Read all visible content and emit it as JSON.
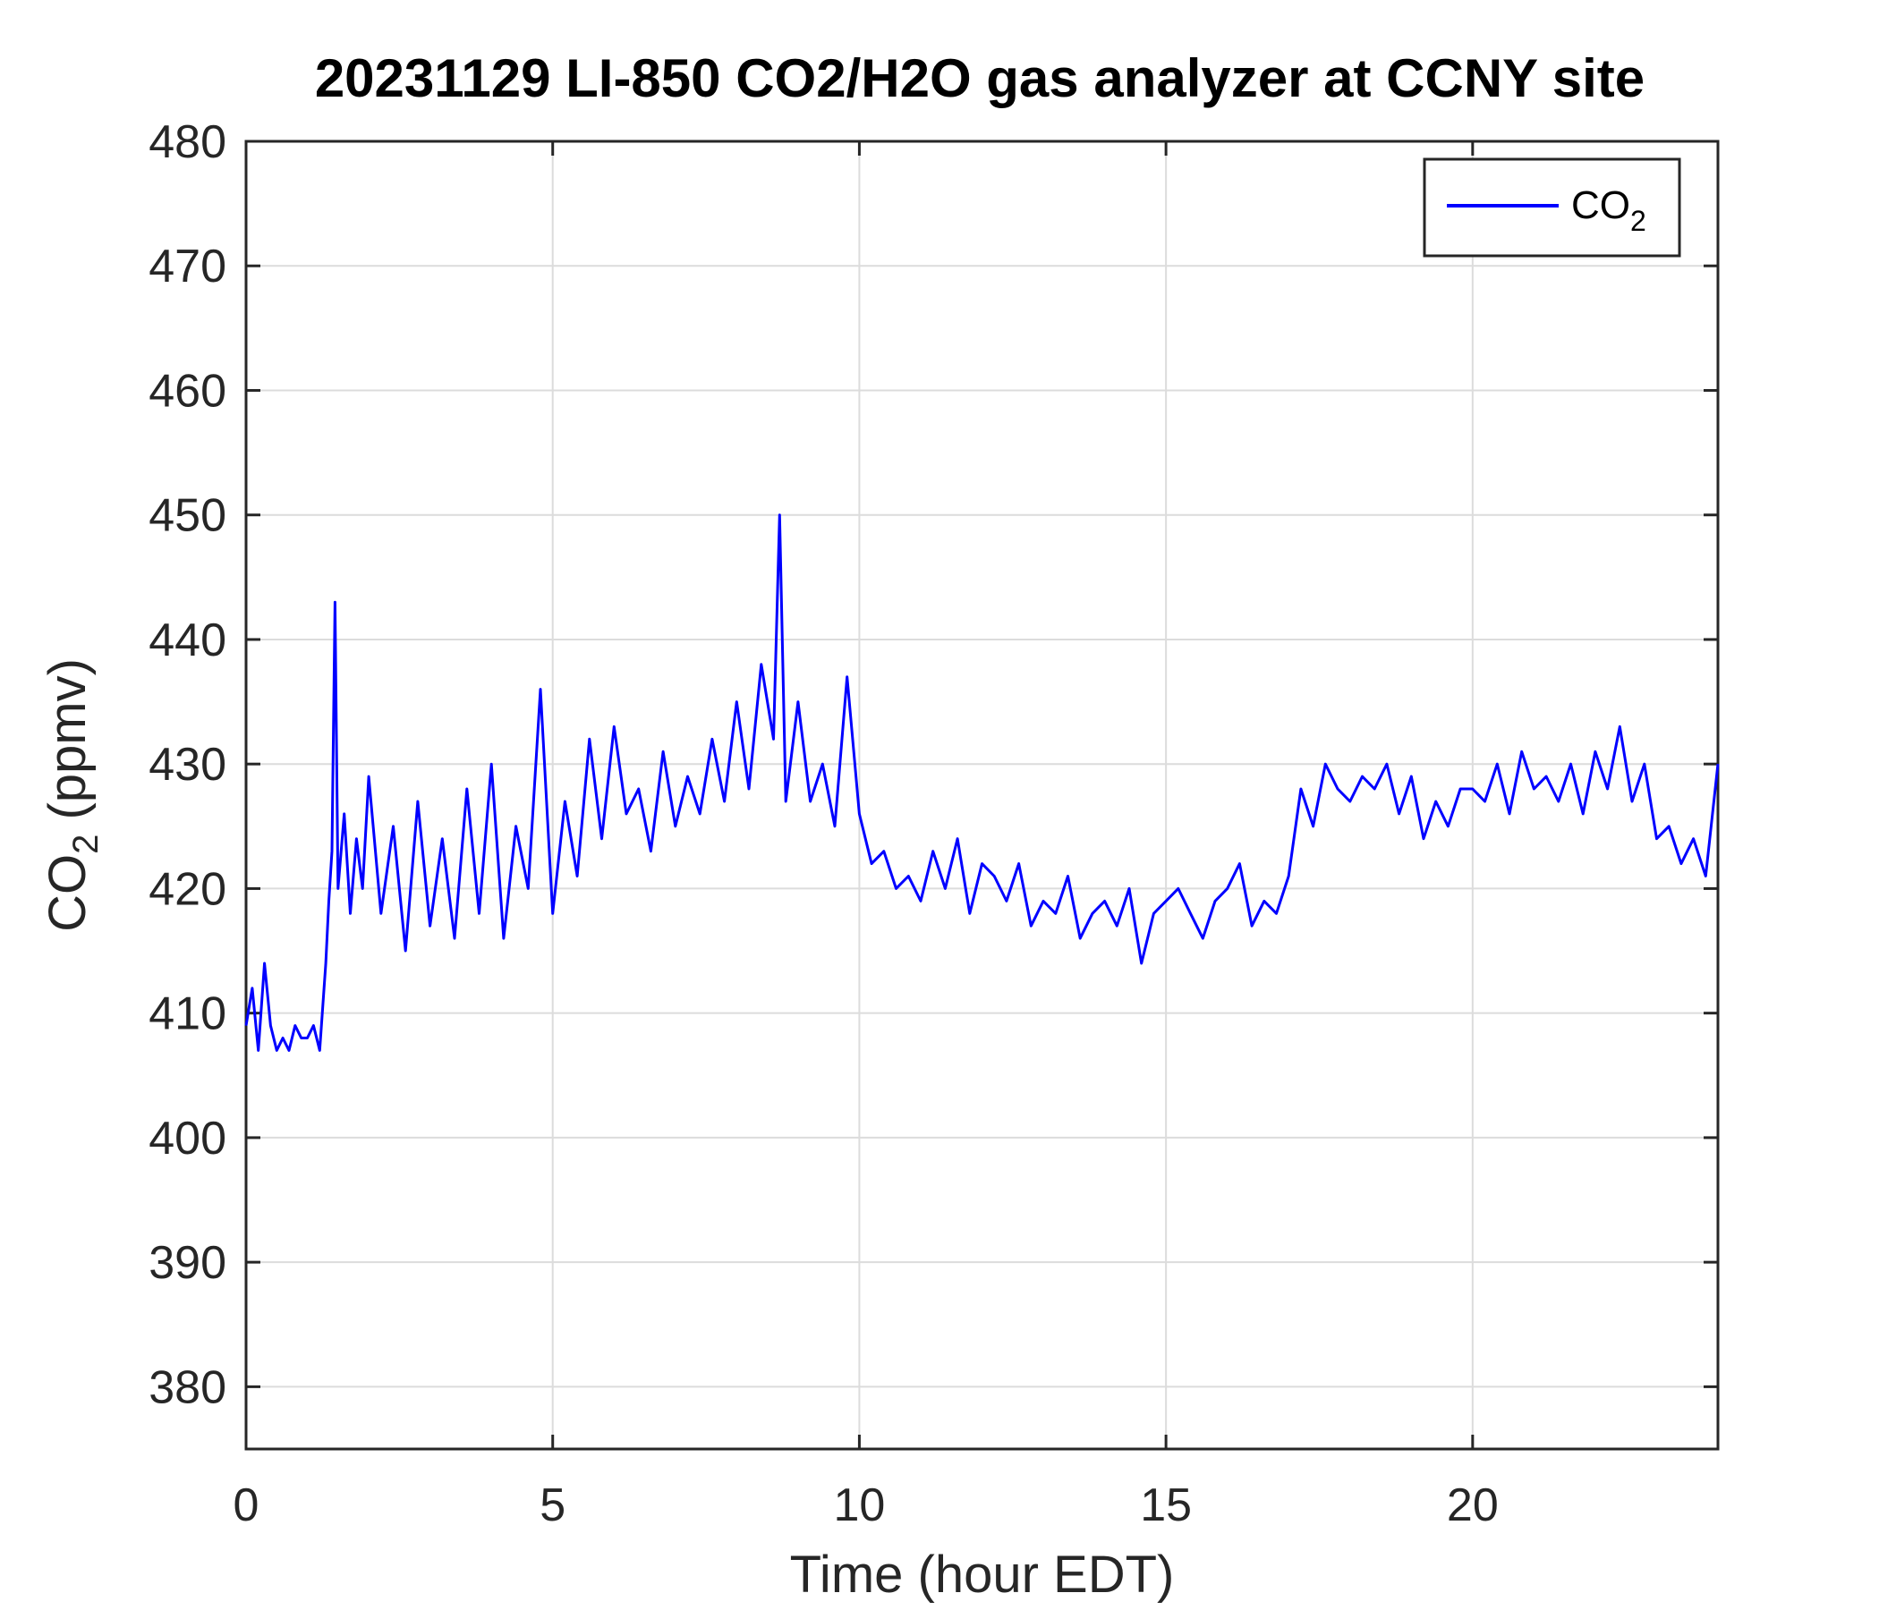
{
  "chart_data": {
    "type": "line",
    "title": "20231129 LI-850 CO2/H2O gas analyzer at CCNY site",
    "xlabel": "Time (hour EDT)",
    "ylabel_main": "CO",
    "ylabel_sub": "2",
    "ylabel_unit": " (ppmv)",
    "xlim": [
      0,
      24
    ],
    "ylim": [
      375,
      480
    ],
    "xticks": [
      0,
      5,
      10,
      15,
      20
    ],
    "yticks": [
      380,
      390,
      400,
      410,
      420,
      430,
      440,
      450,
      460,
      470,
      480
    ],
    "grid": true,
    "legend_position": "top-right",
    "series": [
      {
        "name_main": "CO",
        "name_sub": "2",
        "color": "#0000ff",
        "x": [
          0,
          0.1,
          0.2,
          0.3,
          0.4,
          0.5,
          0.6,
          0.7,
          0.8,
          0.9,
          1.0,
          1.1,
          1.2,
          1.3,
          1.35,
          1.4,
          1.45,
          1.5,
          1.6,
          1.7,
          1.8,
          1.9,
          2.0,
          2.2,
          2.4,
          2.6,
          2.8,
          3.0,
          3.2,
          3.4,
          3.6,
          3.8,
          4.0,
          4.2,
          4.4,
          4.6,
          4.8,
          5.0,
          5.2,
          5.4,
          5.6,
          5.8,
          6.0,
          6.2,
          6.4,
          6.6,
          6.8,
          7.0,
          7.2,
          7.4,
          7.6,
          7.8,
          8.0,
          8.2,
          8.4,
          8.6,
          8.7,
          8.8,
          9.0,
          9.2,
          9.4,
          9.6,
          9.8,
          10.0,
          10.2,
          10.4,
          10.6,
          10.8,
          11.0,
          11.2,
          11.4,
          11.6,
          11.8,
          12.0,
          12.2,
          12.4,
          12.6,
          12.8,
          13.0,
          13.2,
          13.4,
          13.6,
          13.8,
          14.0,
          14.2,
          14.4,
          14.6,
          14.8,
          15.0,
          15.2,
          15.4,
          15.6,
          15.8,
          16.0,
          16.2,
          16.4,
          16.6,
          16.8,
          17.0,
          17.2,
          17.4,
          17.6,
          17.8,
          18.0,
          18.2,
          18.4,
          18.6,
          18.8,
          19.0,
          19.2,
          19.4,
          19.6,
          19.8,
          20.0,
          20.2,
          20.4,
          20.6,
          20.8,
          21.0,
          21.2,
          21.4,
          21.6,
          21.8,
          22.0,
          22.2,
          22.4,
          22.6,
          22.8,
          23.0,
          23.2,
          23.4,
          23.6,
          23.8,
          24.0
        ],
        "y": [
          409,
          412,
          407,
          414,
          409,
          407,
          408,
          407,
          409,
          408,
          408,
          409,
          407,
          414,
          419,
          423,
          443,
          420,
          426,
          418,
          424,
          420,
          429,
          418,
          425,
          415,
          427,
          417,
          424,
          416,
          428,
          418,
          430,
          416,
          425,
          420,
          436,
          418,
          427,
          421,
          432,
          424,
          433,
          426,
          428,
          423,
          431,
          425,
          429,
          426,
          432,
          427,
          435,
          428,
          438,
          432,
          450,
          427,
          435,
          427,
          430,
          425,
          437,
          426,
          422,
          423,
          420,
          421,
          419,
          423,
          420,
          424,
          418,
          422,
          421,
          419,
          422,
          417,
          419,
          418,
          421,
          416,
          418,
          419,
          417,
          420,
          414,
          418,
          419,
          420,
          418,
          416,
          419,
          420,
          422,
          417,
          419,
          418,
          421,
          428,
          425,
          430,
          428,
          427,
          429,
          428,
          430,
          426,
          429,
          424,
          427,
          425,
          428,
          428,
          427,
          430,
          426,
          431,
          428,
          429,
          427,
          430,
          426,
          431,
          428,
          433,
          427,
          430,
          424,
          425,
          422,
          424,
          421,
          430
        ]
      }
    ]
  }
}
